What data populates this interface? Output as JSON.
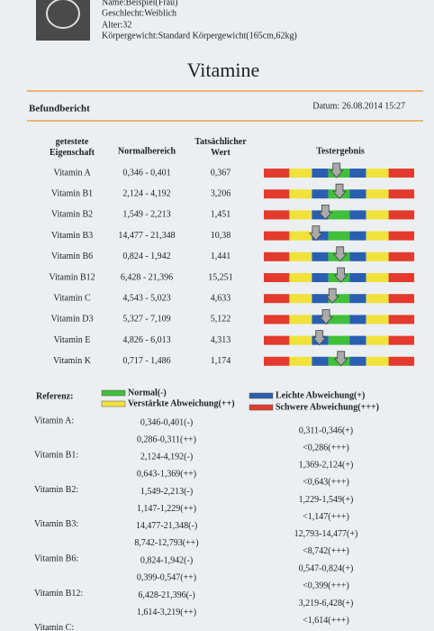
{
  "header": {
    "name": "Name:Beispiel(Frau)",
    "gender": "Geschlecht:Weiblich",
    "age": "Alter:32",
    "weight": "Körpergewicht:Standard Körpergewicht(165cm,62kg)"
  },
  "title": "Vitamine",
  "section": "Befundbericht",
  "date": "Datum: 26.08.2014 15:27",
  "table": {
    "columns": [
      "getestete Eigenschaft",
      "Normalbereich",
      "Tatsächlicher Wert",
      "Testergebnis"
    ],
    "rows": [
      [
        "Vitamin A",
        "0,346 - 0,401",
        "0,367"
      ],
      [
        "Vitamin B1",
        "2,124 - 4,192",
        "3,206"
      ],
      [
        "Vitamin B2",
        "1,549 - 2,213",
        "1,451"
      ],
      [
        "Vitamin B3",
        "14,477 - 21,348",
        "10,38"
      ],
      [
        "Vitamin B6",
        "0,824 - 1,942",
        "1,441"
      ],
      [
        "Vitamin B12",
        "6,428 - 21,396",
        "15,251"
      ],
      [
        "Vitamin C",
        "4,543 - 5,023",
        "4,633"
      ],
      [
        "Vitamin D3",
        "5,327 - 7,109",
        "5,122"
      ],
      [
        "Vitamin E",
        "4,826 - 6,013",
        "4,313"
      ],
      [
        "Vitamin K",
        "0,717 - 1,486",
        "1,174"
      ]
    ]
  },
  "legend": {
    "label": "Referenz:",
    "items": [
      "Normal(-)",
      "Verstärkte Abweichung(++)",
      "Leichte Abweichung(+)",
      "Schwere Abweichung(+++)"
    ]
  },
  "reference": [
    {
      "name": "Vitamin A:",
      "left": [
        "0,346-0,401(-)",
        "0,286-0,311(++)"
      ],
      "right": [
        "0,311-0,346(+)",
        "<0,286(+++)"
      ]
    },
    {
      "name": "Vitamin B1:",
      "left": [
        "2,124-4,192(-)",
        "0,643-1,369(++)"
      ],
      "right": [
        "1,369-2,124(+)",
        "<0,643(+++)"
      ]
    },
    {
      "name": "Vitamin B2:",
      "left": [
        "1,549-2,213(-)",
        "1,147-1,229(++)"
      ],
      "right": [
        "1,229-1,549(+)",
        "<1,147(+++)"
      ]
    },
    {
      "name": "Vitamin B3:",
      "left": [
        "14,477-21,348(-)",
        "8,742-12,793(++)"
      ],
      "right": [
        "12,793-14,477(+)",
        "<8,742(+++)"
      ]
    },
    {
      "name": "Vitamin B6:",
      "left": [
        "0,824-1,942(-)",
        "0,399-0,547(++)"
      ],
      "right": [
        "0,547-0,824(+)",
        "<0,399(+++)"
      ]
    },
    {
      "name": "Vitamin B12:",
      "left": [
        "6,428-21,396(-)",
        "1,614-3,219(++)"
      ],
      "right": [
        "3,219-6,428(+)",
        "<1,614(+++)"
      ]
    },
    {
      "name": "Vitamin C:",
      "left": [],
      "right": []
    }
  ]
}
